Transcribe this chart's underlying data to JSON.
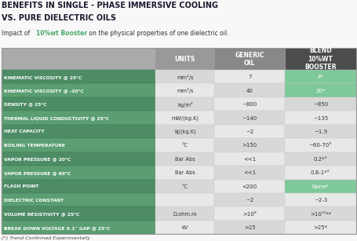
{
  "title_line1": "BENEFITS IN SINGLE - PHASE IMMERSIVE COOLING",
  "title_line2": "VS. PURE DIELECTRIC OILS",
  "subtitle_prefix": "Impact of ",
  "subtitle_highlight": "10%wt Booster",
  "subtitle_suffix": " on the physical properties of one dielectric oil.",
  "highlight_color": "#4aaa6a",
  "title_color": "#1a1a2e",
  "col_headers": [
    "UNITS",
    "GENERIC\nOIL",
    "BLEND\n10%WT\nBOOSTER"
  ],
  "header_label_bg": "#aaaaaa",
  "header_units_bg": "#999999",
  "header_generic_bg": "#888888",
  "header_blend_bg": "#555555",
  "row_label_bg_dark": "#4a8a5a",
  "row_label_bg_light": "#6aaa7a",
  "row_data_bg_even": "#e2e2e2",
  "row_data_bg_odd": "#ebebeb",
  "highlight_cell_bg": "#88cc99",
  "rows": [
    {
      "label": "KINEMATIC VISCOSITY @ 25°C",
      "units": "mm²/s",
      "generic": "7",
      "blend": "4*",
      "blend_hi": true
    },
    {
      "label": "KINEMATIC VISCOSITY @ -20°C",
      "units": "mm²/s",
      "generic": "40",
      "blend": "20*",
      "blend_hi": true
    },
    {
      "label": "DENSITY @ 25°C",
      "units": "kg/m³",
      "generic": "~800",
      "blend": "~850",
      "blend_hi": false
    },
    {
      "label": "THERMAL LIQUID CONDUCTIVITY @ 25°C",
      "units": "mW/(kg.K)",
      "generic": "~140",
      "blend": "~135",
      "blend_hi": false
    },
    {
      "label": "HEAT CAPACITY",
      "units": "kJ/(kg.K)",
      "generic": "~2",
      "blend": "~1.9",
      "blend_hi": false
    },
    {
      "label": "BOILING TEMPERATURE",
      "units": "°C",
      "generic": ">150",
      "blend": "~60-70°",
      "blend_hi": false
    },
    {
      "label": "VAPOR PRESSURE @ 20°C",
      "units": "Bar Abs",
      "generic": "<<1",
      "blend": "0.2*°",
      "blend_hi": false
    },
    {
      "label": "VAPOR PRESSURE @ 60°C",
      "units": "Bar Abs",
      "generic": "<<1",
      "blend": "0.8-1*°",
      "blend_hi": false
    },
    {
      "label": "FLASH POINT",
      "units": "°C",
      "generic": "<200",
      "blend": "None*",
      "blend_hi": true
    },
    {
      "label": "DIELECTRIC CONSTANT",
      "units": "",
      "generic": "~2",
      "blend": "~2-3",
      "blend_hi": false
    },
    {
      "label": "VOLUME RESISTIVITY @ 25°C",
      "units": "Ω.ohm.m",
      "generic": ">10⁸",
      "blend": ">10¹¹**",
      "blend_hi": false
    },
    {
      "label": "BREAK DOWN VOLTAGE 0.1\" GAP @ 25°C",
      "units": "kV",
      "generic": ">25",
      "blend": ">25*",
      "blend_hi": false
    }
  ],
  "footnote": "(*) Trend Confirmed Experimentally",
  "bg_color": "#f8f8f8"
}
